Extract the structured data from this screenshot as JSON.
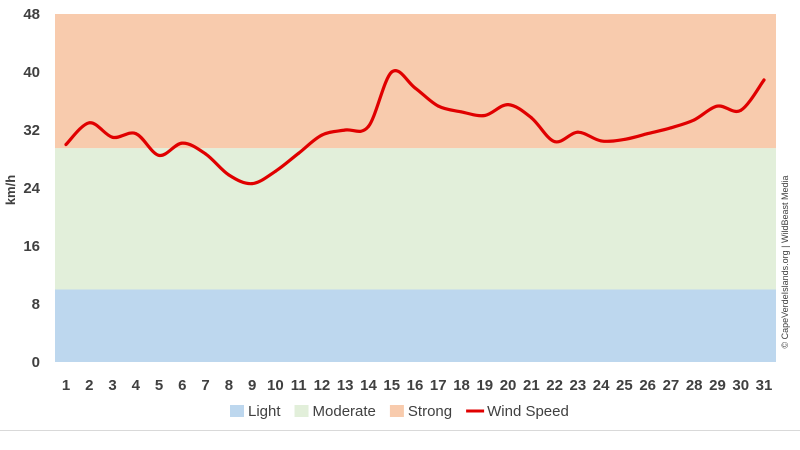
{
  "chart_data": {
    "type": "line",
    "ylabel": "km/h",
    "ylim": [
      0,
      48
    ],
    "yticks": [
      0,
      8,
      16,
      24,
      32,
      40,
      48
    ],
    "x": [
      1,
      2,
      3,
      4,
      5,
      6,
      7,
      8,
      9,
      10,
      11,
      12,
      13,
      14,
      15,
      16,
      17,
      18,
      19,
      20,
      21,
      22,
      23,
      24,
      25,
      26,
      27,
      28,
      29,
      30,
      31
    ],
    "bands": [
      {
        "name": "Light",
        "from": 0,
        "to": 10,
        "color": "#bdd7ee"
      },
      {
        "name": "Moderate",
        "from": 10,
        "to": 29.5,
        "color": "#e2efda"
      },
      {
        "name": "Strong",
        "from": 29.5,
        "to": 48,
        "color": "#f8cbad"
      }
    ],
    "series": [
      {
        "name": "Wind Speed",
        "color": "#e00000",
        "values": [
          30.0,
          33.0,
          31.0,
          31.5,
          28.5,
          30.2,
          28.7,
          25.8,
          24.6,
          26.3,
          28.8,
          31.3,
          32.0,
          32.5,
          40.0,
          37.8,
          35.3,
          34.5,
          34.0,
          35.5,
          33.7,
          30.4,
          31.7,
          30.5,
          30.7,
          31.5,
          32.3,
          33.4,
          35.3,
          34.7,
          38.9
        ]
      }
    ],
    "legend_position": "bottom",
    "grid": false
  },
  "credit": "© CapeVerdeIslands.org | WildBeast Media"
}
